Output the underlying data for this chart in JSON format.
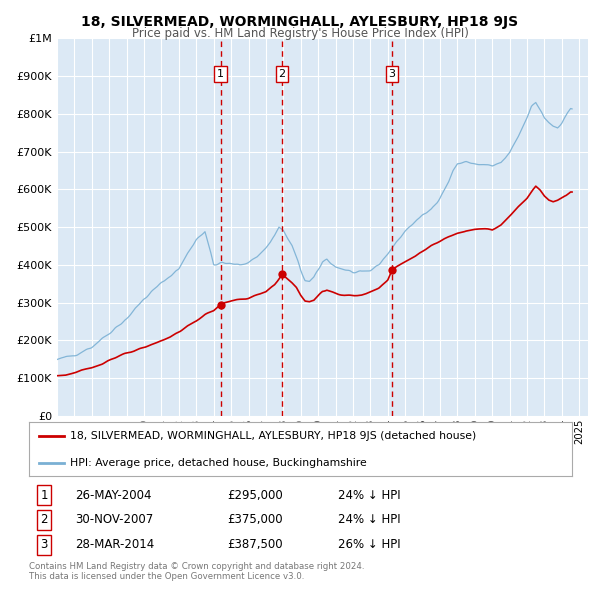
{
  "title": "18, SILVERMEAD, WORMINGHALL, AYLESBURY, HP18 9JS",
  "subtitle": "Price paid vs. HM Land Registry's House Price Index (HPI)",
  "background_color": "#ffffff",
  "plot_bg_color": "#dce9f5",
  "grid_color": "#ffffff",
  "ylim": [
    0,
    1000000
  ],
  "yticks": [
    0,
    100000,
    200000,
    300000,
    400000,
    500000,
    600000,
    700000,
    800000,
    900000,
    1000000
  ],
  "ytick_labels": [
    "£0",
    "£100K",
    "£200K",
    "£300K",
    "£400K",
    "£500K",
    "£600K",
    "£700K",
    "£800K",
    "£900K",
    "£1M"
  ],
  "xlim_start": 1995.0,
  "xlim_end": 2025.5,
  "sale_color": "#cc0000",
  "hpi_color": "#7ab0d4",
  "sale_label": "18, SILVERMEAD, WORMINGHALL, AYLESBURY, HP18 9JS (detached house)",
  "hpi_label": "HPI: Average price, detached house, Buckinghamshire",
  "transactions": [
    {
      "num": 1,
      "date_x": 2004.4,
      "price": 295000,
      "date_str": "26-MAY-2004",
      "pct": "24%",
      "dir": "↓"
    },
    {
      "num": 2,
      "date_x": 2007.92,
      "price": 375000,
      "date_str": "30-NOV-2007",
      "pct": "24%",
      "dir": "↓"
    },
    {
      "num": 3,
      "date_x": 2014.25,
      "price": 387500,
      "date_str": "28-MAR-2014",
      "pct": "26%",
      "dir": "↓"
    }
  ],
  "footer_line1": "Contains HM Land Registry data © Crown copyright and database right 2024.",
  "footer_line2": "This data is licensed under the Open Government Licence v3.0."
}
